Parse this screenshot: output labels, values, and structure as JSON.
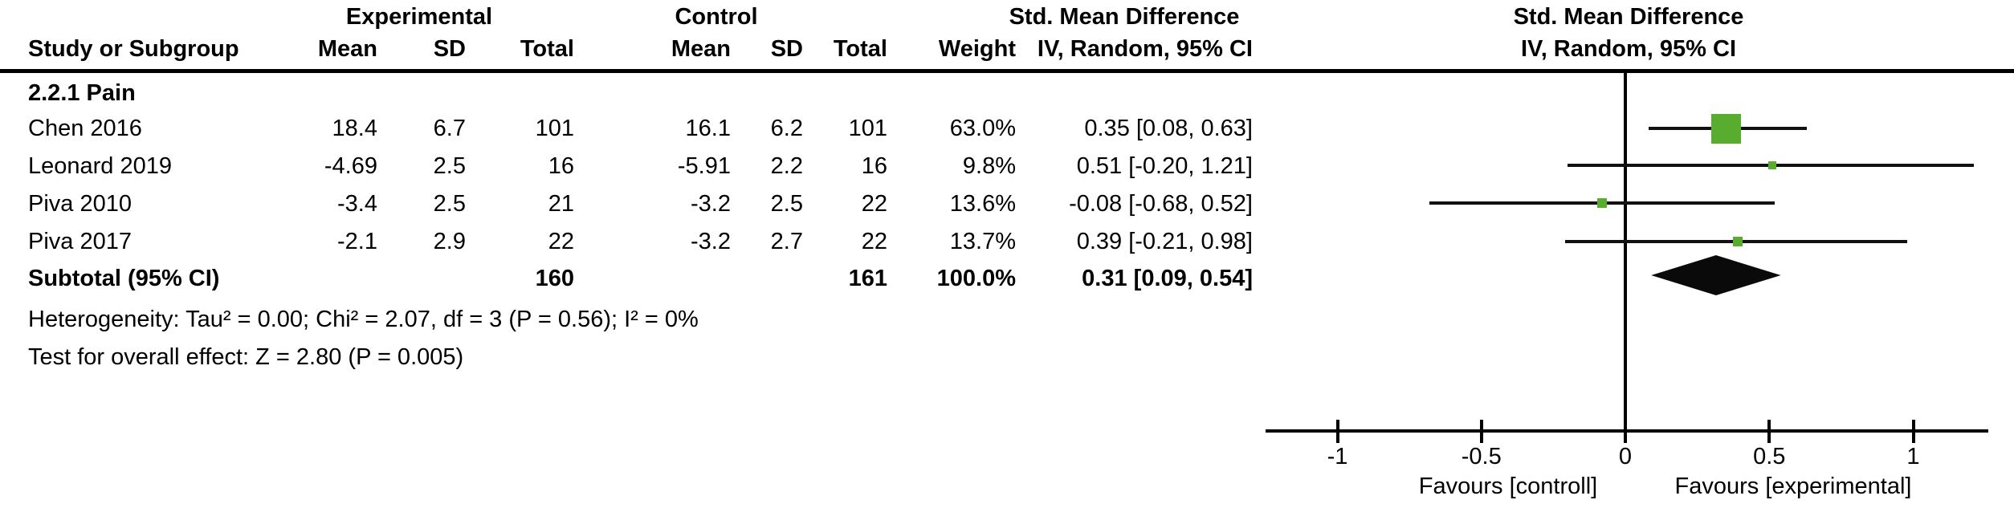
{
  "header": {
    "left_group": {
      "experimental": "Experimental",
      "control": "Control",
      "smd": "Std. Mean Difference"
    },
    "cols": {
      "study": "Study or Subgroup",
      "mean": "Mean",
      "sd": "SD",
      "total": "Total",
      "weight": "Weight",
      "ci": "IV, Random, 95% CI"
    },
    "plot": {
      "title": "Std. Mean Difference",
      "subtitle": "IV, Random, 95% CI"
    }
  },
  "table": {
    "subgroup_label": "2.2.1 Pain",
    "rows": [
      {
        "study": "Chen 2016",
        "exp_mean": "18.4",
        "exp_sd": "6.7",
        "exp_total": "101",
        "ctrl_mean": "16.1",
        "ctrl_sd": "6.2",
        "ctrl_total": "101",
        "weight": "63.0%",
        "ci": "0.35 [0.08, 0.63]"
      },
      {
        "study": "Leonard 2019",
        "exp_mean": "-4.69",
        "exp_sd": "2.5",
        "exp_total": "16",
        "ctrl_mean": "-5.91",
        "ctrl_sd": "2.2",
        "ctrl_total": "16",
        "weight": "9.8%",
        "ci": "0.51 [-0.20, 1.21]"
      },
      {
        "study": "Piva 2010",
        "exp_mean": "-3.4",
        "exp_sd": "2.5",
        "exp_total": "21",
        "ctrl_mean": "-3.2",
        "ctrl_sd": "2.5",
        "ctrl_total": "22",
        "weight": "13.6%",
        "ci": "-0.08 [-0.68, 0.52]"
      },
      {
        "study": "Piva 2017",
        "exp_mean": "-2.1",
        "exp_sd": "2.9",
        "exp_total": "22",
        "ctrl_mean": "-3.2",
        "ctrl_sd": "2.7",
        "ctrl_total": "22",
        "weight": "13.7%",
        "ci": "0.39 [-0.21, 0.98]"
      }
    ],
    "subtotal": {
      "label": "Subtotal (95% CI)",
      "exp_total": "160",
      "ctrl_total": "161",
      "weight": "100.0%",
      "ci": "0.31 [0.09, 0.54]"
    },
    "heterogeneity": "Heterogeneity: Tau² = 0.00; Chi² = 2.07, df = 3 (P = 0.56); I² = 0%",
    "overall_effect": "Test for overall effect: Z = 2.80 (P = 0.005)"
  },
  "chart_data": {
    "type": "forest",
    "effect_measure": "Std. Mean Difference",
    "model": "IV, Random, 95% CI",
    "subgroup": "2.2.1 Pain",
    "studies": [
      {
        "name": "Chen 2016",
        "est": 0.35,
        "lo": 0.08,
        "hi": 0.63,
        "weight_pct": 63.0
      },
      {
        "name": "Leonard 2019",
        "est": 0.51,
        "lo": -0.2,
        "hi": 1.21,
        "weight_pct": 9.8
      },
      {
        "name": "Piva 2010",
        "est": -0.08,
        "lo": -0.68,
        "hi": 0.52,
        "weight_pct": 13.6
      },
      {
        "name": "Piva 2017",
        "est": 0.39,
        "lo": -0.21,
        "hi": 0.98,
        "weight_pct": 13.7
      }
    ],
    "subtotal": {
      "est": 0.31,
      "lo": 0.09,
      "hi": 0.54
    },
    "axis": {
      "ticks": [
        -1,
        -0.5,
        0,
        0.5,
        1
      ],
      "min": -1.25,
      "max": 1.26
    },
    "labels": {
      "left": "Favours [controll]",
      "right": "Favours [experimental]"
    },
    "marker_color": "#58ad2f",
    "diamond_color": "#0a0a0a"
  }
}
